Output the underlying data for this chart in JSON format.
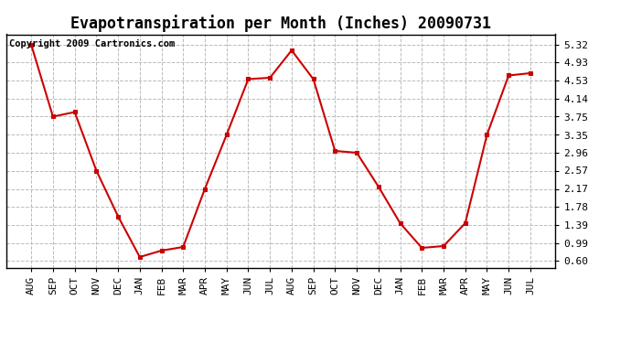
{
  "title": "Evapotranspiration per Month (Inches) 20090731",
  "copyright_text": "Copyright 2009 Cartronics.com",
  "x_labels": [
    "AUG",
    "SEP",
    "OCT",
    "NOV",
    "DEC",
    "JAN",
    "FEB",
    "MAR",
    "APR",
    "MAY",
    "JUN",
    "JUL",
    "AUG",
    "SEP",
    "OCT",
    "NOV",
    "DEC",
    "JAN",
    "FEB",
    "MAR",
    "APR",
    "MAY",
    "JUN",
    "JUL"
  ],
  "y_values": [
    5.32,
    3.75,
    3.85,
    2.57,
    1.57,
    0.68,
    0.82,
    0.9,
    2.17,
    3.35,
    4.57,
    4.6,
    5.2,
    4.57,
    3.0,
    2.96,
    2.22,
    1.42,
    0.88,
    0.92,
    1.42,
    3.35,
    4.65,
    4.7
  ],
  "y_ticks": [
    0.6,
    0.99,
    1.39,
    1.78,
    2.17,
    2.57,
    2.96,
    3.35,
    3.75,
    4.14,
    4.53,
    4.93,
    5.32
  ],
  "y_tick_labels": [
    "0.60",
    "0.99",
    "1.39",
    "1.78",
    "2.17",
    "2.57",
    "2.96",
    "3.35",
    "3.75",
    "4.14",
    "4.53",
    "4.93",
    "5.32"
  ],
  "line_color": "#cc0000",
  "marker": "s",
  "marker_size": 3,
  "background_color": "#ffffff",
  "grid_color": "#bbbbbb",
  "ylim": [
    0.45,
    5.55
  ],
  "title_fontsize": 12,
  "tick_fontsize": 8,
  "copyright_fontsize": 7.5,
  "linewidth": 1.5
}
